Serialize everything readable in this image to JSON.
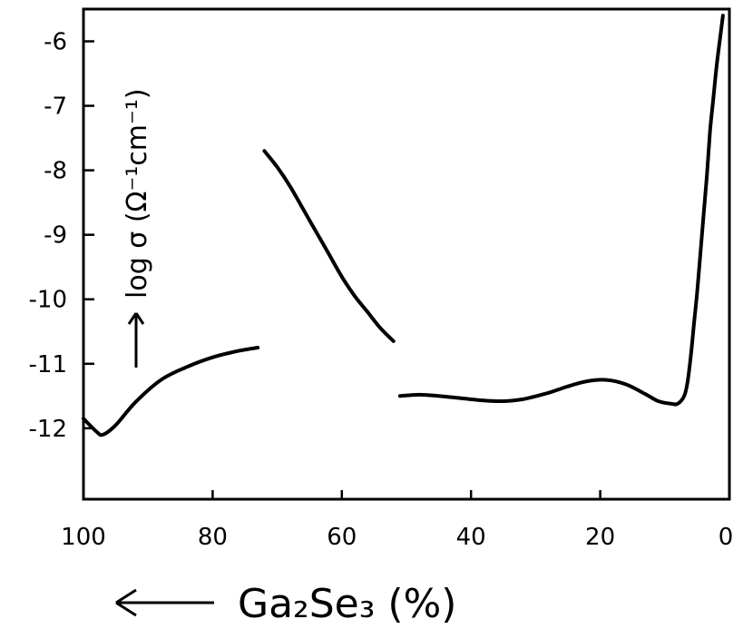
{
  "chart_data": {
    "type": "line",
    "title": "",
    "xlabel": "Ga₂Se₃ (%)",
    "ylabel": "log σ (Ω⁻¹cm⁻¹)",
    "xlim": [
      100,
      0
    ],
    "ylim": [
      -13.1,
      -5.5
    ],
    "x_reversed": true,
    "x_ticks": [
      100,
      80,
      60,
      40,
      20,
      0
    ],
    "x_tick_labels": [
      "100",
      "80",
      "60",
      "40",
      "20",
      "0"
    ],
    "y_ticks": [
      -6,
      -7,
      -8,
      -9,
      -10,
      -11,
      -12
    ],
    "y_tick_labels": [
      "-6",
      "-7",
      "-8",
      "-9",
      "-10",
      "-11",
      "-12"
    ],
    "grid": false,
    "legend": "none",
    "line_color": "#000000",
    "x_arrow_direction": "left",
    "y_arrow_direction": "up",
    "series": [
      {
        "x": [
          100,
          98,
          97,
          95,
          92,
          88,
          84,
          80,
          76,
          73
        ],
        "y": [
          -11.85,
          -12.05,
          -12.1,
          -11.95,
          -11.6,
          -11.25,
          -11.05,
          -10.9,
          -10.8,
          -10.75
        ]
      },
      {
        "x": [
          72,
          70,
          68,
          66,
          64,
          62,
          60,
          58,
          56,
          54,
          52
        ],
        "y": [
          -7.7,
          -7.95,
          -8.25,
          -8.6,
          -8.95,
          -9.3,
          -9.65,
          -9.95,
          -10.2,
          -10.45,
          -10.65
        ]
      },
      {
        "x": [
          51,
          48,
          45,
          42,
          38,
          35,
          32,
          28,
          25,
          22,
          19,
          16,
          13,
          11,
          9,
          8,
          7,
          6.5,
          6,
          5.5,
          5,
          4.5,
          4,
          3.5,
          3,
          2.5,
          2,
          1.5,
          1
        ],
        "y": [
          -11.5,
          -11.48,
          -11.5,
          -11.53,
          -11.57,
          -11.58,
          -11.55,
          -11.45,
          -11.35,
          -11.27,
          -11.25,
          -11.32,
          -11.47,
          -11.58,
          -11.62,
          -11.62,
          -11.5,
          -11.3,
          -10.9,
          -10.4,
          -9.9,
          -9.3,
          -8.7,
          -8.1,
          -7.4,
          -6.9,
          -6.4,
          -6.0,
          -5.6
        ]
      }
    ]
  }
}
